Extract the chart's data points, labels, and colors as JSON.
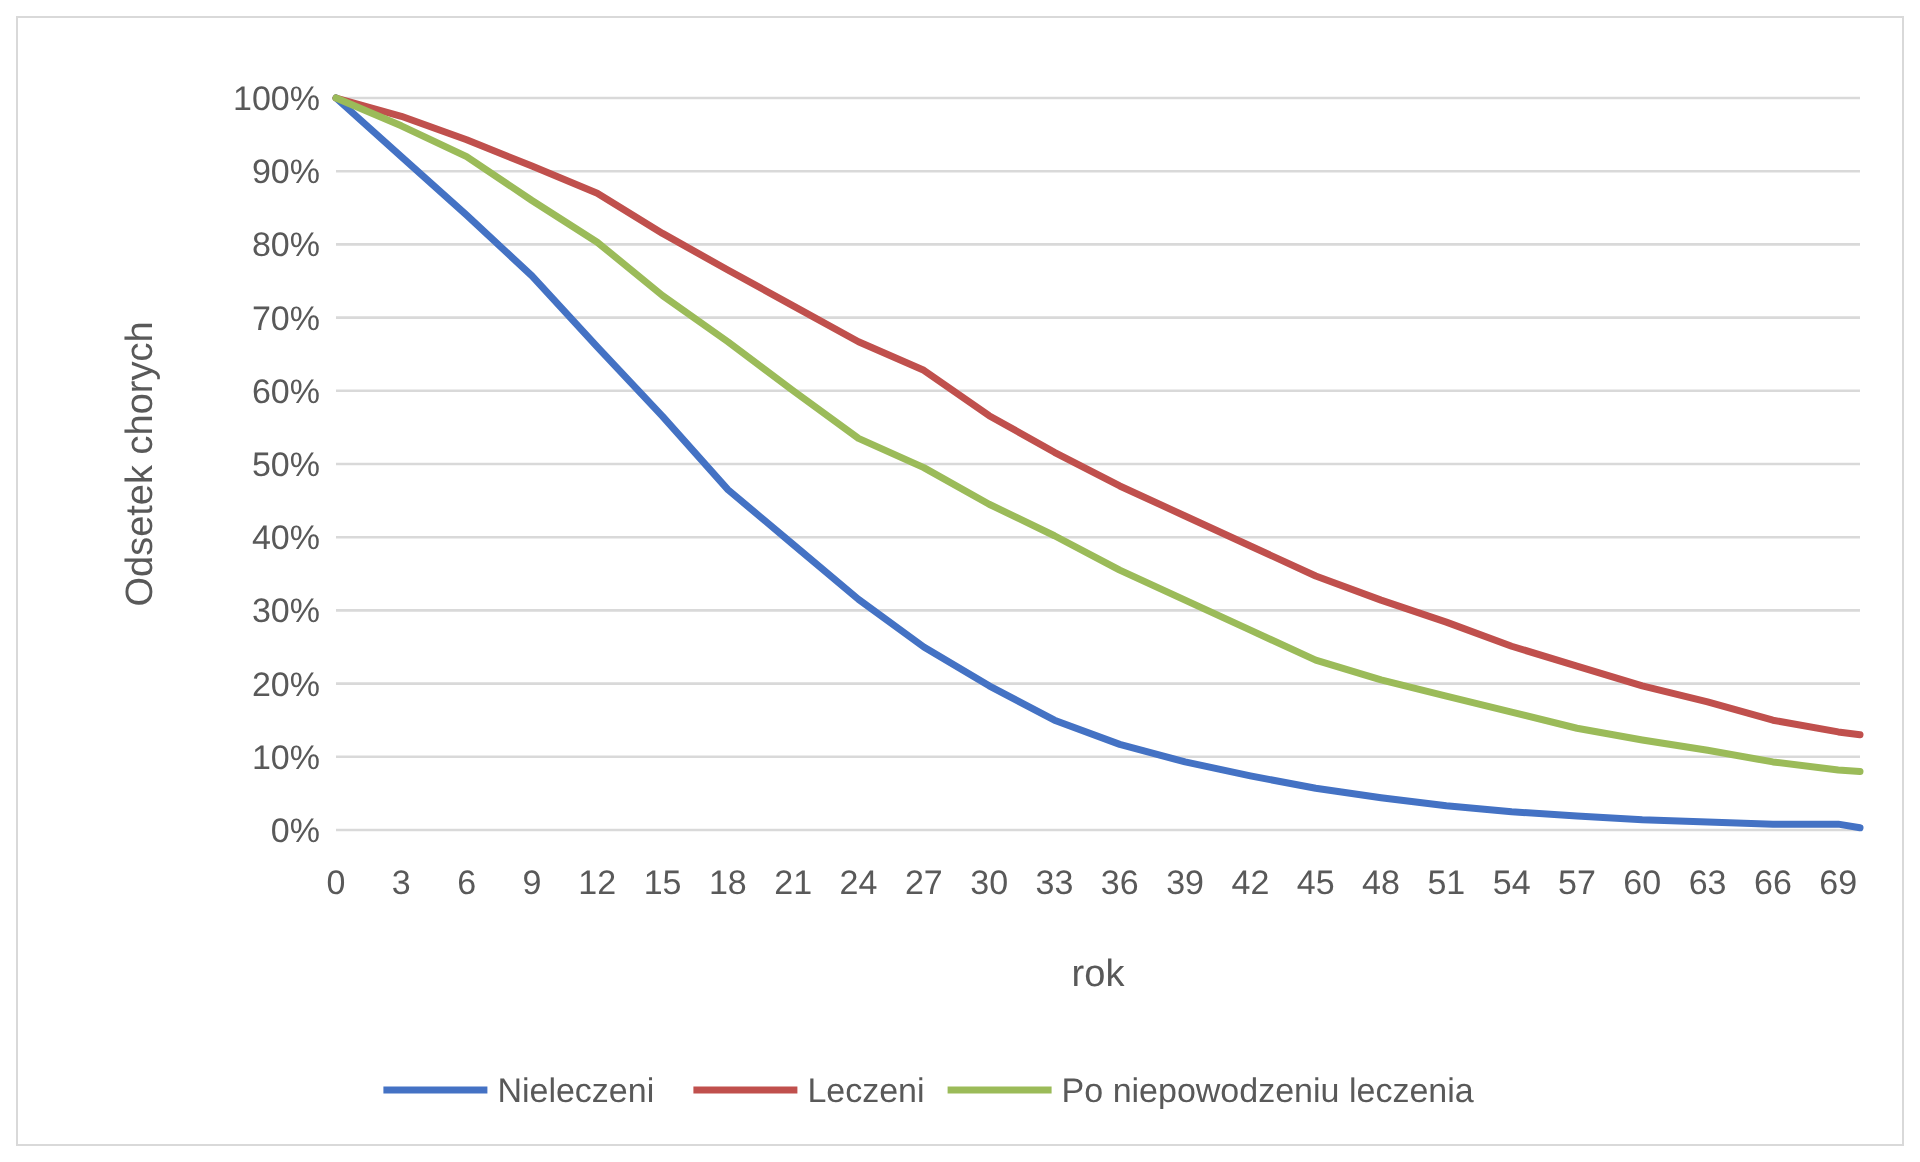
{
  "chart_data": {
    "type": "line",
    "xlabel": "rok",
    "ylabel": "Odsetek chorych",
    "x": [
      0,
      3,
      6,
      9,
      12,
      15,
      18,
      21,
      24,
      27,
      30,
      33,
      36,
      39,
      42,
      45,
      48,
      51,
      54,
      57,
      60,
      63,
      66,
      69,
      70
    ],
    "xlim": [
      0,
      70
    ],
    "xticks": [
      0,
      3,
      6,
      9,
      12,
      15,
      18,
      21,
      24,
      27,
      30,
      33,
      36,
      39,
      42,
      45,
      48,
      51,
      54,
      57,
      60,
      63,
      66,
      69
    ],
    "ylim": [
      0,
      100
    ],
    "yticks": [
      {
        "value": 0,
        "label": "0%"
      },
      {
        "value": 10,
        "label": "10%"
      },
      {
        "value": 20,
        "label": "20%"
      },
      {
        "value": 30,
        "label": "30%"
      },
      {
        "value": 40,
        "label": "40%"
      },
      {
        "value": 50,
        "label": "50%"
      },
      {
        "value": 60,
        "label": "60%"
      },
      {
        "value": 70,
        "label": "70%"
      },
      {
        "value": 80,
        "label": "80%"
      },
      {
        "value": 90,
        "label": "90%"
      },
      {
        "value": 100,
        "label": "100%"
      }
    ],
    "grid": "y",
    "legend": "bottom",
    "marker": "none",
    "line_style": "solid",
    "series": [
      {
        "name": "Nieleczeni",
        "color": "#4472c4",
        "values": [
          100,
          92,
          84,
          75.7,
          66,
          56.5,
          46.5,
          39,
          31.5,
          25,
          19.7,
          15,
          11.7,
          9.3,
          7.4,
          5.7,
          4.4,
          3.3,
          2.5,
          1.9,
          1.4,
          1.1,
          0.8,
          0.8,
          0.3
        ]
      },
      {
        "name": "Leczeni",
        "color": "#c0504d",
        "values": [
          100,
          97.5,
          94.3,
          90.7,
          87,
          81.5,
          76.5,
          71.6,
          66.7,
          62.8,
          56.6,
          51.6,
          47,
          42.9,
          38.8,
          34.7,
          31.4,
          28.4,
          25.1,
          22.4,
          19.7,
          17.5,
          15,
          13.4,
          13
        ]
      },
      {
        "name": "Po niepowodzeniu leczenia",
        "color": "#9bbb59",
        "values": [
          100,
          96.2,
          92,
          86,
          80.3,
          73,
          66.7,
          60,
          53.5,
          49.5,
          44.5,
          40.2,
          35.5,
          31.4,
          27.3,
          23.2,
          20.5,
          18.3,
          16.1,
          13.9,
          12.3,
          10.9,
          9.3,
          8.2,
          8
        ]
      }
    ]
  }
}
